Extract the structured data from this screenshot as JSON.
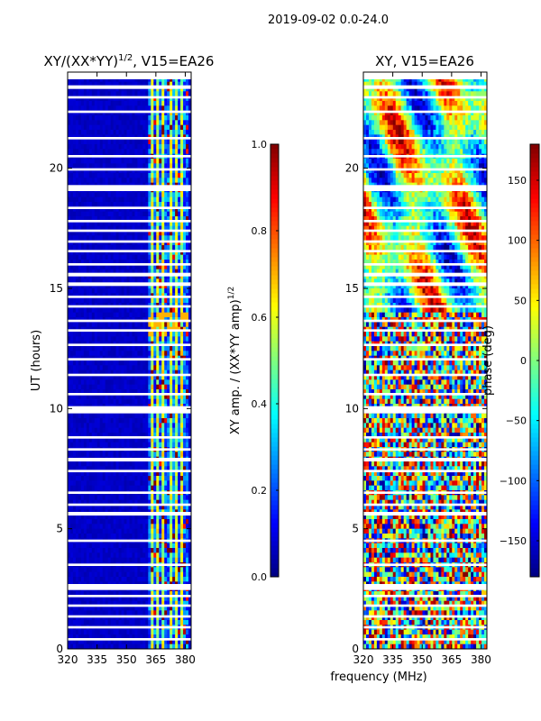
{
  "suptitle": "2019-09-02 0.0-24.0",
  "shared_xlabel": "frequency (MHz)",
  "colormap": [
    "#00007f",
    "#0000ff",
    "#007fff",
    "#00ffff",
    "#7fff7f",
    "#ffff00",
    "#ff7f00",
    "#ff0000",
    "#7f0000"
  ],
  "gap_color": "#ffffff",
  "chart_data": [
    {
      "type": "heatmap",
      "title": "XY/(XX*YY)",
      "title_exp": "1/2",
      "title_suffix": ", V15=EA26",
      "xlabel": "",
      "ylabel": "UT (hours)",
      "xlim": [
        320,
        383
      ],
      "ylim": [
        0,
        24
      ],
      "xticks": [
        320,
        335,
        350,
        365,
        380
      ],
      "yticks": [
        0,
        5,
        10,
        15,
        20
      ],
      "colorbar": {
        "label": "XY amp. / (XX*YY amp)",
        "label_exp": "1/2",
        "range": [
          0.0,
          1.0
        ],
        "ticks": [
          0.0,
          0.2,
          0.4,
          0.6,
          0.8,
          1.0
        ],
        "tick_labels": [
          "0.0",
          "0.2",
          "0.4",
          "0.6",
          "0.8",
          "1.0"
        ]
      },
      "features": {
        "background_value": 0.05,
        "signal_band_mhz": [
          361,
          382
        ],
        "signal_values": [
          0.45,
          0.75
        ],
        "stripe_period_mhz": 3.2
      }
    },
    {
      "type": "heatmap",
      "title": "XY, V15=EA26",
      "xlabel": "frequency (MHz)",
      "ylabel": "",
      "xlim": [
        320,
        383
      ],
      "ylim": [
        0,
        24
      ],
      "xticks": [
        320,
        335,
        350,
        365,
        380
      ],
      "yticks": [
        0,
        5,
        10,
        15,
        20
      ],
      "colorbar": {
        "label": "phase (deg)",
        "range": [
          -180,
          180
        ],
        "ticks": [
          -150,
          -100,
          -50,
          0,
          50,
          100,
          150
        ],
        "tick_labels": [
          "−150",
          "−100",
          "−50",
          "0",
          "50",
          "100",
          "150"
        ]
      },
      "features": {
        "background_value": "random phase",
        "smooth_band_ut": [
          14,
          24
        ],
        "noisy_band_ut": [
          0,
          14
        ]
      }
    }
  ],
  "flagged_ut_hours": [
    [
      0.35,
      0.45
    ],
    [
      0.85,
      0.95
    ],
    [
      1.3,
      1.4
    ],
    [
      1.75,
      1.85
    ],
    [
      2.15,
      2.25
    ],
    [
      2.45,
      2.7
    ],
    [
      3.45,
      3.55
    ],
    [
      4.45,
      4.55
    ],
    [
      5.55,
      5.7
    ],
    [
      5.95,
      6.05
    ],
    [
      6.45,
      6.55
    ],
    [
      7.35,
      7.45
    ],
    [
      7.8,
      7.95
    ],
    [
      8.25,
      8.35
    ],
    [
      8.75,
      8.85
    ],
    [
      9.8,
      10.1
    ],
    [
      10.55,
      10.65
    ],
    [
      11.35,
      11.45
    ],
    [
      12.0,
      12.1
    ],
    [
      12.6,
      12.7
    ],
    [
      13.2,
      13.3
    ],
    [
      13.6,
      13.7
    ],
    [
      14.2,
      14.3
    ],
    [
      14.6,
      14.7
    ],
    [
      15.1,
      15.25
    ],
    [
      15.5,
      15.65
    ],
    [
      15.95,
      16.05
    ],
    [
      16.5,
      16.6
    ],
    [
      16.9,
      17.0
    ],
    [
      17.35,
      17.45
    ],
    [
      17.75,
      17.85
    ],
    [
      18.3,
      18.4
    ],
    [
      19.05,
      19.3
    ],
    [
      19.9,
      20.0
    ],
    [
      20.45,
      20.55
    ],
    [
      21.2,
      21.3
    ],
    [
      22.3,
      22.4
    ],
    [
      22.9,
      23.0
    ],
    [
      23.3,
      23.45
    ],
    [
      23.7,
      24.0
    ]
  ]
}
